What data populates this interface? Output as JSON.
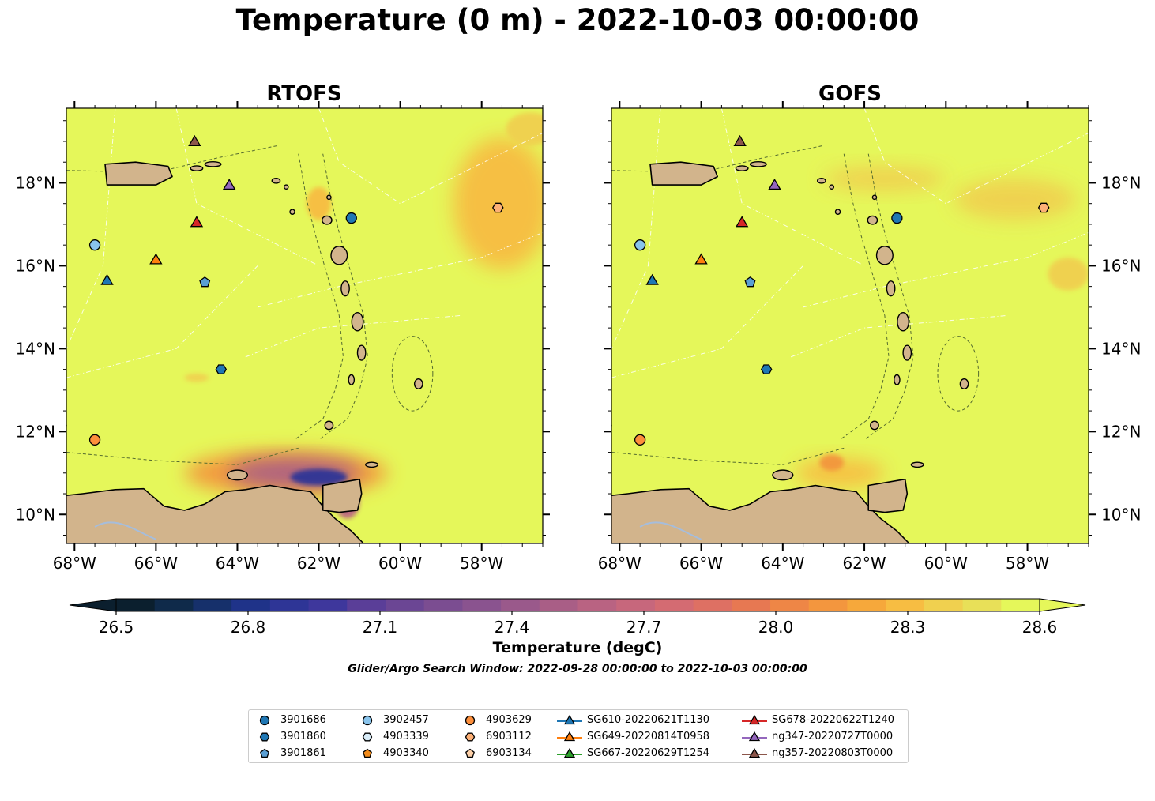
{
  "figure": {
    "title": "Temperature (0 m) - 2022-10-03 00:00:00",
    "window_text": "Glider/Argo Search Window: 2022-09-28 00:00:00 to 2022-10-03 00:00:00",
    "colors": {
      "ocean": "#e5f75a",
      "land": "#d2b48c",
      "lake": "#a6bddb",
      "warm": "#f7b940",
      "cool_mid": "#9b5a8f",
      "cool_deep": "#3b2f8f"
    }
  },
  "chart_data": [
    {
      "type": "heatmap",
      "title": "RTOFS",
      "xlabel": "",
      "ylabel": "",
      "xlim": [
        -68.2,
        -56.5
      ],
      "ylim": [
        9.3,
        19.8
      ],
      "xticks": [
        "68°W",
        "66°W",
        "64°W",
        "62°W",
        "60°W",
        "58°W"
      ],
      "yticks": [
        "18°N",
        "16°N",
        "14°N",
        "12°N",
        "10°N"
      ],
      "field": {
        "background_value": 28.6,
        "warm_regions": [
          {
            "lon": -57.5,
            "lat": 17.5,
            "value": 28.3,
            "rx": 1.2,
            "ry": 1.6
          },
          {
            "lon": -56.8,
            "lat": 19.3,
            "value": 28.4,
            "rx": 0.6,
            "ry": 0.4
          },
          {
            "lon": -62.0,
            "lat": 17.5,
            "value": 28.3,
            "rx": 0.3,
            "ry": 0.4
          },
          {
            "lon": -65.0,
            "lat": 13.3,
            "value": 28.4,
            "rx": 0.3,
            "ry": 0.1
          }
        ],
        "cool_regions": [
          {
            "lon": -62.8,
            "lat": 11.0,
            "value": 28.1,
            "rx": 2.5,
            "ry": 0.55
          },
          {
            "lon": -62.6,
            "lat": 11.0,
            "value": 27.5,
            "rx": 1.6,
            "ry": 0.35
          },
          {
            "lon": -62.0,
            "lat": 10.9,
            "value": 26.9,
            "rx": 0.7,
            "ry": 0.2
          },
          {
            "lon": -61.3,
            "lat": 10.3,
            "value": 27.6,
            "rx": 0.3,
            "ry": 0.4
          }
        ]
      },
      "observations": [
        {
          "name": "3901686",
          "lon": -61.2,
          "lat": 17.15
        },
        {
          "name": "3901860",
          "lon": -64.4,
          "lat": 13.5
        },
        {
          "name": "3901861",
          "lon": -64.8,
          "lat": 15.6
        },
        {
          "name": "3902457",
          "lon": -67.5,
          "lat": 16.5
        },
        {
          "name": "4903629",
          "lon": -67.5,
          "lat": 11.8
        },
        {
          "name": "6903112",
          "lon": -57.6,
          "lat": 17.4
        },
        {
          "name": "SG610-20220621T1130",
          "lon": -67.2,
          "lat": 15.65
        },
        {
          "name": "SG649-20220814T0958",
          "lon": -66.0,
          "lat": 16.15
        },
        {
          "name": "SG678-20220622T1240",
          "lon": -65.0,
          "lat": 17.05
        },
        {
          "name": "ng347-20220727T0000",
          "lon": -64.2,
          "lat": 17.95
        },
        {
          "name": "ng357-20220803T0000",
          "lon": -65.05,
          "lat": 19.0
        }
      ]
    },
    {
      "type": "heatmap",
      "title": "GOFS",
      "xlabel": "",
      "ylabel": "",
      "xlim": [
        -68.2,
        -56.5
      ],
      "ylim": [
        9.3,
        19.8
      ],
      "xticks": [
        "68°W",
        "66°W",
        "64°W",
        "62°W",
        "60°W",
        "58°W"
      ],
      "yticks": [
        "18°N",
        "16°N",
        "14°N",
        "12°N",
        "10°N"
      ],
      "field": {
        "background_value": 28.6,
        "warm_regions": [
          {
            "lon": -61.5,
            "lat": 18.1,
            "value": 28.4,
            "rx": 1.5,
            "ry": 0.3
          },
          {
            "lon": -58.3,
            "lat": 17.6,
            "value": 28.4,
            "rx": 1.5,
            "ry": 0.5
          },
          {
            "lon": -57.0,
            "lat": 15.8,
            "value": 28.4,
            "rx": 0.5,
            "ry": 0.4
          },
          {
            "lon": -62.6,
            "lat": 11.0,
            "value": 28.3,
            "rx": 1.1,
            "ry": 0.35
          }
        ],
        "cool_regions": [
          {
            "lon": -62.8,
            "lat": 11.25,
            "value": 28.1,
            "rx": 0.3,
            "ry": 0.2
          }
        ]
      },
      "observations": [
        {
          "name": "3901686",
          "lon": -61.2,
          "lat": 17.15
        },
        {
          "name": "3901860",
          "lon": -64.4,
          "lat": 13.5
        },
        {
          "name": "3901861",
          "lon": -64.8,
          "lat": 15.6
        },
        {
          "name": "3902457",
          "lon": -67.5,
          "lat": 16.5
        },
        {
          "name": "4903629",
          "lon": -67.5,
          "lat": 11.8
        },
        {
          "name": "6903112",
          "lon": -57.6,
          "lat": 17.4
        },
        {
          "name": "SG610-20220621T1130",
          "lon": -67.2,
          "lat": 15.65
        },
        {
          "name": "SG649-20220814T0958",
          "lon": -66.0,
          "lat": 16.15
        },
        {
          "name": "SG678-20220622T1240",
          "lon": -65.0,
          "lat": 17.05
        },
        {
          "name": "ng347-20220727T0000",
          "lon": -64.2,
          "lat": 17.95
        },
        {
          "name": "ng357-20220803T0000",
          "lon": -65.05,
          "lat": 19.0
        }
      ]
    }
  ],
  "colorbar": {
    "label": "Temperature (degC)",
    "min": 26.5,
    "max": 28.6,
    "ticks": [
      "26.5",
      "26.8",
      "27.1",
      "27.4",
      "27.7",
      "28.0",
      "28.3",
      "28.6"
    ],
    "tick_values": [
      26.5,
      26.8,
      27.1,
      27.4,
      27.7,
      28.0,
      28.3,
      28.6
    ],
    "extend": "both",
    "colors": [
      "#0b1f2e",
      "#0f2a4a",
      "#16306b",
      "#1f3389",
      "#2e3596",
      "#3e379c",
      "#5a3e98",
      "#6b4694",
      "#7b4d91",
      "#8a538f",
      "#9a598b",
      "#a95e86",
      "#b96382",
      "#c7677c",
      "#d46b72",
      "#de7063",
      "#e77852",
      "#ee8646",
      "#f3963e",
      "#f6a83b",
      "#f7bd42",
      "#f0d04f",
      "#e8e058",
      "#e5f75a"
    ]
  },
  "legend": {
    "items": [
      {
        "label": "3901686",
        "marker": "circle",
        "color": "#1f77b4"
      },
      {
        "label": "3901860",
        "marker": "hexagon",
        "color": "#1f77b4"
      },
      {
        "label": "3901861",
        "marker": "pentagon",
        "color": "#5a9fd4"
      },
      {
        "label": "3902457",
        "marker": "circle",
        "color": "#89c4ec"
      },
      {
        "label": "4903339",
        "marker": "hexagon",
        "color": "#d8ecf8"
      },
      {
        "label": "4903340",
        "marker": "pentagon",
        "color": "#f28b1a"
      },
      {
        "label": "4903629",
        "marker": "circle",
        "color": "#fd8f3c"
      },
      {
        "label": "6903112",
        "marker": "hexagon",
        "color": "#fdb076"
      },
      {
        "label": "6903134",
        "marker": "pentagon",
        "color": "#fdd0a8"
      },
      {
        "label": "SG610-20220621T1130",
        "marker": "triangle-line",
        "color": "#1f77b4"
      },
      {
        "label": "SG649-20220814T0958",
        "marker": "triangle-line",
        "color": "#ff7f0e"
      },
      {
        "label": "SG667-20220629T1254",
        "marker": "triangle-line",
        "color": "#2ca02c"
      },
      {
        "label": "SG678-20220622T1240",
        "marker": "triangle-line",
        "color": "#d62728"
      },
      {
        "label": "ng347-20220727T0000",
        "marker": "triangle-line",
        "color": "#9467bd"
      },
      {
        "label": "ng357-20220803T0000",
        "marker": "triangle-line",
        "color": "#8c564b"
      }
    ]
  }
}
